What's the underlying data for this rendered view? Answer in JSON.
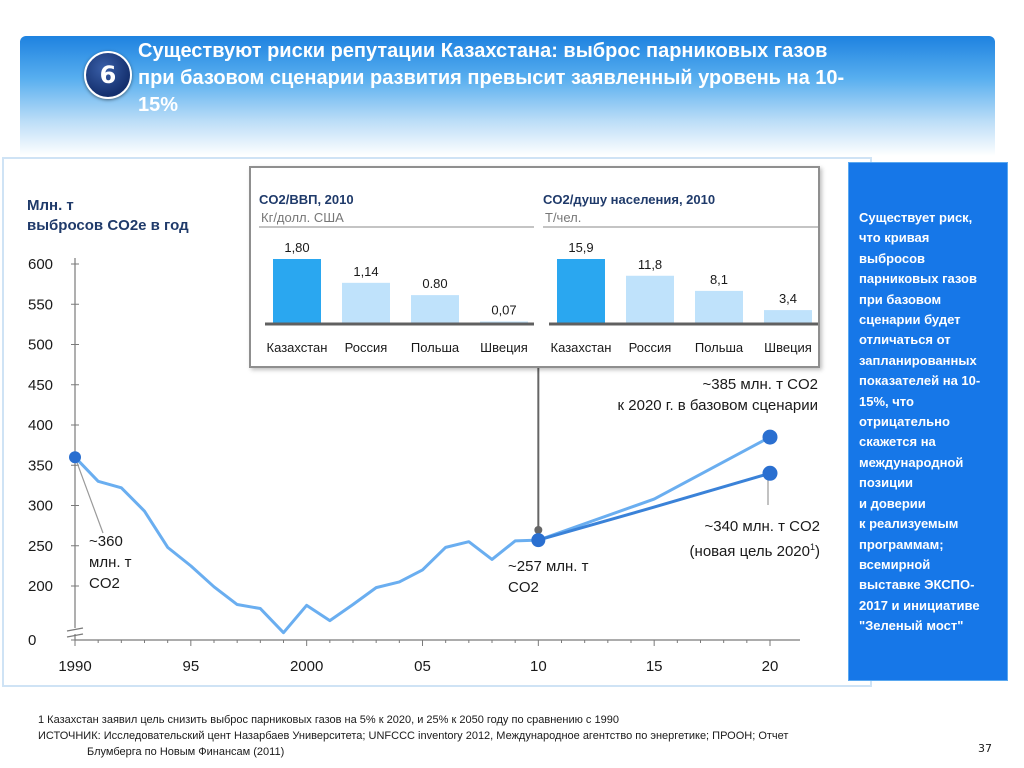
{
  "header": {
    "badge": "6",
    "title": "Существуют риски репутации Казахстана: выброс парниковых газов при базовом сценарии развития превысит  заявленный уровень на 10-15%"
  },
  "chart_data": [
    {
      "type": "line",
      "ylabel_line1": "Млн. т",
      "ylabel_line2": "выбросов CO2е в год",
      "y_ticks": [
        0,
        200,
        250,
        300,
        350,
        400,
        450,
        500,
        550,
        600
      ],
      "y_axis_break": true,
      "x_ticks": [
        {
          "year": 1990,
          "label": "1990"
        },
        {
          "year": 1995,
          "label": "95"
        },
        {
          "year": 2000,
          "label": "2000"
        },
        {
          "year": 2005,
          "label": "05"
        },
        {
          "year": 2010,
          "label": "10"
        },
        {
          "year": 2015,
          "label": "15"
        },
        {
          "year": 2020,
          "label": "20"
        }
      ],
      "xlim": [
        1990,
        2020
      ],
      "grid": false,
      "colors": {
        "series": "#6aaef0",
        "target": "#3a82d8",
        "marker": "#2a6fd0",
        "label_line": "#666666"
      },
      "series": [
        {
          "x": [
            1990,
            1991,
            1992,
            1993,
            1994,
            1995,
            1996,
            1997,
            1998,
            1999,
            2000,
            2001,
            2002,
            2003,
            2004,
            2005,
            2006,
            2007,
            2008,
            2009,
            2010
          ],
          "y": [
            360,
            330,
            322,
            293,
            248,
            225,
            199,
            177,
            172,
            142,
            176,
            157,
            177,
            198,
            205,
            220,
            248,
            255,
            233,
            256,
            257
          ]
        },
        {
          "x": [
            2010,
            2015,
            2020
          ],
          "y": [
            257,
            308,
            385
          ]
        },
        {
          "x": [
            2010,
            2015,
            2020
          ],
          "y": [
            257,
            298,
            340
          ]
        }
      ],
      "annotations": {
        "start": "~360\nмлн. т\nCO2",
        "y2010": "~257 млн. т\nCO2",
        "base2020": "~385 млн. т CO2\nк 2020 г. в базовом сценарии",
        "target2020": "~340 млн. т CO2\n(новая цель 2020",
        "target2020_sup": "1",
        "target2020_end": ")"
      }
    },
    {
      "type": "bar",
      "title": "CO2/ВВП, 2010",
      "unit": "Кг/долл. США",
      "categories": [
        "Казахстан",
        "Россия",
        "Польша",
        "Швеция"
      ],
      "values": [
        1.8,
        1.14,
        0.8,
        0.07
      ],
      "value_labels": [
        "1,80",
        "1,14",
        "0.80",
        "0,07"
      ],
      "colors": [
        "#2aa7f0",
        "#bfe2fb",
        "#bfe2fb",
        "#bfe2fb"
      ]
    },
    {
      "type": "bar",
      "title": "CO2/душу населения, 2010",
      "unit": "Т/чел.",
      "categories": [
        "Казахстан",
        "Россия",
        "Польша",
        "Швеция"
      ],
      "values": [
        15.9,
        11.8,
        8.1,
        3.4
      ],
      "value_labels": [
        "15,9",
        "11,8",
        "8,1",
        "3,4"
      ],
      "colors": [
        "#2aa7f0",
        "#bfe2fb",
        "#bfe2fb",
        "#bfe2fb"
      ]
    }
  ],
  "sidebar": {
    "text": "Существует риск,\nчто кривая\nвыбросов\nпарниковых газов\nпри базовом\nсценарии будет\nотличаться от\nзапланированных\nпоказателей на 10-\n15%, что\nотрицательно\nскажется на\nмеждународной\nпозиции\nи доверии\nк реализуемым\nпрограммам;\nвсемирной\nвыставке ЭКСПО-\n2017 и инициативе\n\"Зеленый мост\""
  },
  "footnote": {
    "line1": "1 Казахстан заявил цель снизить выброс парниковых газов на 5% к 2020, и 25% к 2050 году по сравнению с 1990",
    "line2": "ИСТОЧНИК: Исследовательский цент Назарбаев Университета; UNFCCC inventory 2012, Международное агентство по энергетике; ПРООН; Отчет",
    "line3": "Блумберга по Новым Финансам (2011)"
  },
  "page_number": "37"
}
